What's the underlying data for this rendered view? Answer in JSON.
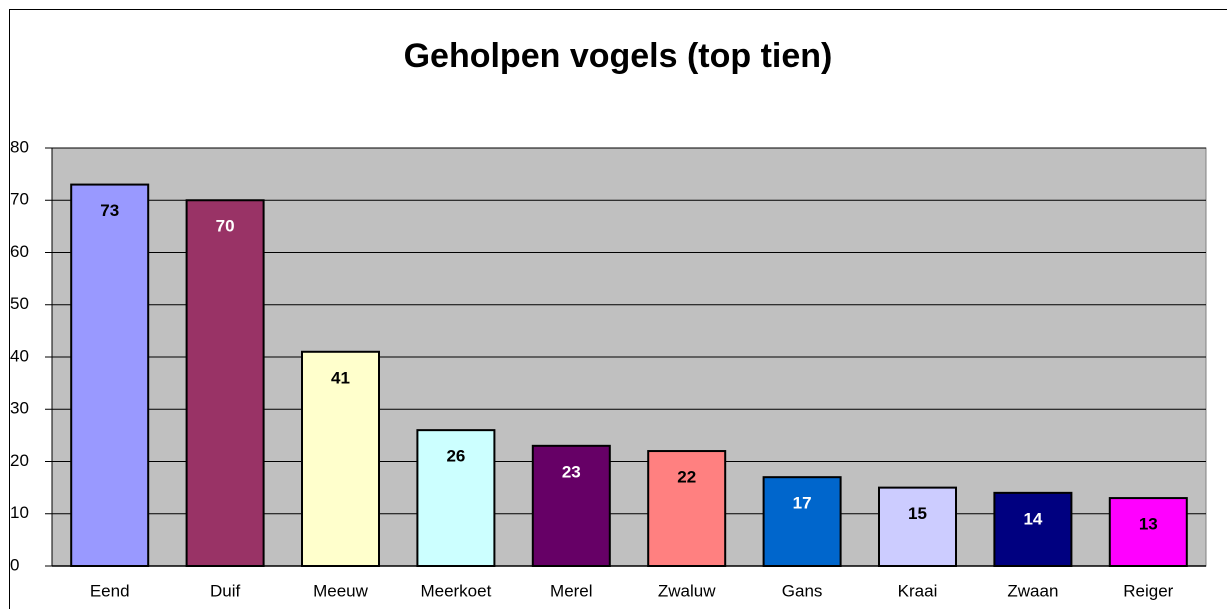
{
  "chart_data": {
    "type": "bar",
    "title": "Geholpen vogels (top tien)",
    "categories": [
      "Eend",
      "Duif",
      "Meeuw",
      "Meerkoet",
      "Merel",
      "Zwaluw",
      "Gans",
      "Kraai",
      "Zwaan",
      "Reiger"
    ],
    "values": [
      73,
      70,
      41,
      26,
      23,
      22,
      17,
      15,
      14,
      13
    ],
    "colors": [
      "#9999ff",
      "#993366",
      "#ffffcc",
      "#ccffff",
      "#660066",
      "#ff8080",
      "#0066cc",
      "#ccccff",
      "#000080",
      "#ff00ff"
    ],
    "ylim": [
      0,
      80
    ],
    "yticks": [
      0,
      10,
      20,
      30,
      40,
      50,
      60,
      70,
      80
    ],
    "grid": true
  }
}
